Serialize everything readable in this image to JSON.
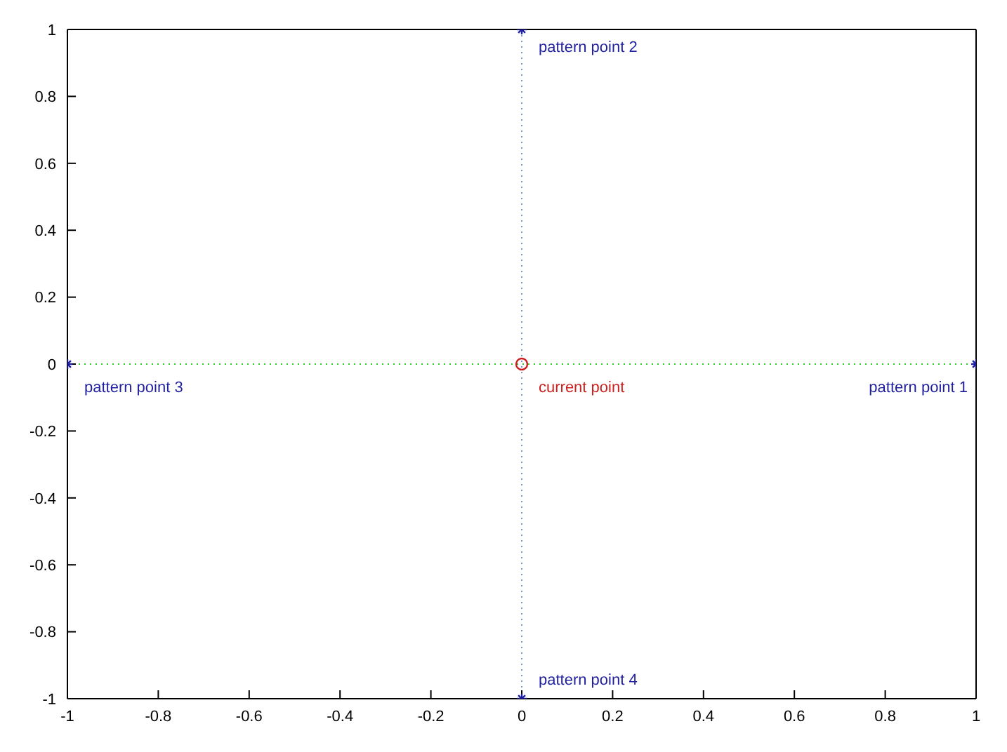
{
  "chart_data": {
    "type": "scatter",
    "xlim": [
      -1,
      1
    ],
    "ylim": [
      -1,
      1
    ],
    "xticks": [
      -1,
      -0.8,
      -0.6,
      -0.4,
      -0.2,
      0,
      0.2,
      0.4,
      0.6,
      0.8,
      1
    ],
    "yticks": [
      -1,
      -0.8,
      -0.6,
      -0.4,
      -0.2,
      0,
      0.2,
      0.4,
      0.6,
      0.8,
      1
    ],
    "series": [
      {
        "color": "#1f1f9f",
        "marker": "cross",
        "x": [
          1,
          0,
          -1,
          0
        ],
        "values": [
          0,
          1,
          0,
          -1
        ]
      },
      {
        "color": "#cc1f1f",
        "marker": "circle",
        "x": [
          0
        ],
        "values": [
          0
        ]
      }
    ],
    "ref_lines": [
      {
        "axis": "y",
        "value": 0,
        "color": "#33cc33",
        "line_style": "dotted"
      },
      {
        "axis": "x",
        "value": 0,
        "color": "#7799cc",
        "line_style": "dotted"
      }
    ],
    "annotations": [
      {
        "text": "pattern point 1",
        "x": 1,
        "y": 0
      },
      {
        "text": "pattern point 2",
        "x": 0,
        "y": 1
      },
      {
        "text": "pattern point 3",
        "x": -1,
        "y": 0
      },
      {
        "text": "pattern point 4",
        "x": 0,
        "y": -1
      },
      {
        "text": "current point",
        "x": 0,
        "y": 0
      }
    ]
  }
}
